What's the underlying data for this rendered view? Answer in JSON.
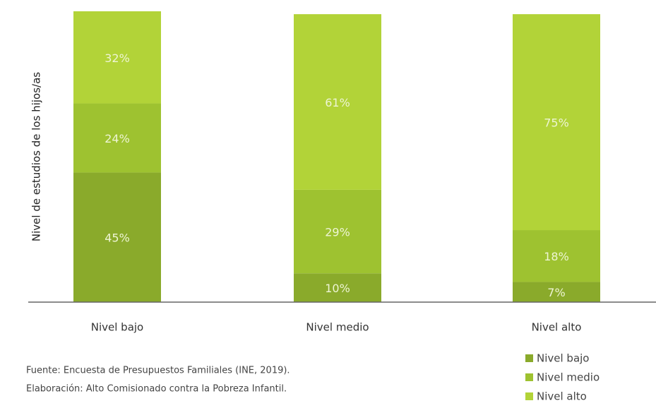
{
  "chart_data": {
    "type": "stacked_bar",
    "y_label": "Nivel de estudios de los hijos/as",
    "categories": [
      "Nivel bajo",
      "Nivel medio",
      "Nivel alto"
    ],
    "series": [
      {
        "name": "Nivel bajo",
        "color": "#8aaa2b",
        "values": [
          45,
          10,
          7
        ],
        "value_labels": [
          "45%",
          "10%",
          "7%"
        ]
      },
      {
        "name": "Nivel medio",
        "color": "#9ec230",
        "values": [
          24,
          29,
          18
        ],
        "value_labels": [
          "24%",
          "29%",
          "18%"
        ]
      },
      {
        "name": "Nivel alto",
        "color": "#b2d338",
        "values": [
          32,
          61,
          75
        ],
        "value_labels": [
          "32%",
          "61%",
          "75%"
        ]
      }
    ],
    "ylim": [
      0,
      101
    ],
    "legend": "bottom-right",
    "source": [
      "Fuente: Encuesta de Presupuestos Familiales (INE, 2019).",
      "Elaboración: Alto Comisionado contra la Pobreza Infantil."
    ]
  }
}
